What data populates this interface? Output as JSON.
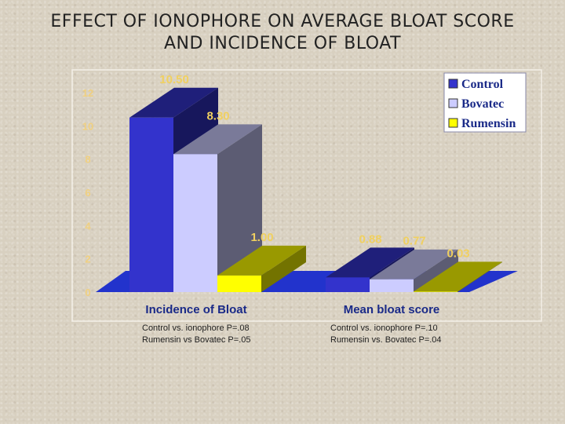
{
  "title": {
    "line1": "EFFECT OF IONOPHORE ON AVERAGE BLOAT SCORE",
    "line2": "AND INCIDENCE OF BLOAT"
  },
  "chart_data": {
    "type": "bar",
    "categories": [
      "Incidence of Bloat",
      "Mean bloat score"
    ],
    "series": [
      {
        "name": "Control",
        "values": [
          10.5,
          0.88
        ],
        "color": "#3333cc",
        "label_texts": [
          "10.50",
          "0.88"
        ]
      },
      {
        "name": "Bovatec",
        "values": [
          8.3,
          0.77
        ],
        "color": "#ccccff",
        "label_texts": [
          "8.30",
          "0.77"
        ]
      },
      {
        "name": "Rumensin",
        "values": [
          1.0,
          0.03
        ],
        "color": "#ffff00",
        "label_texts": [
          "1.00",
          "0.03"
        ]
      }
    ],
    "y_ticks": [
      "0",
      "2",
      "4",
      "6",
      "8",
      "10",
      "12"
    ],
    "ylim": [
      0,
      12
    ],
    "legend": "top-right",
    "grid": false,
    "floor_color": "#2233cc"
  },
  "notes": {
    "left": [
      "Control vs. ionophore  P=.08",
      "Rumensin vs Bovatec P=.05"
    ],
    "right": [
      "Control vs. ionophore   P=.10",
      "Rumensin vs. Bovatec P=.04"
    ]
  }
}
